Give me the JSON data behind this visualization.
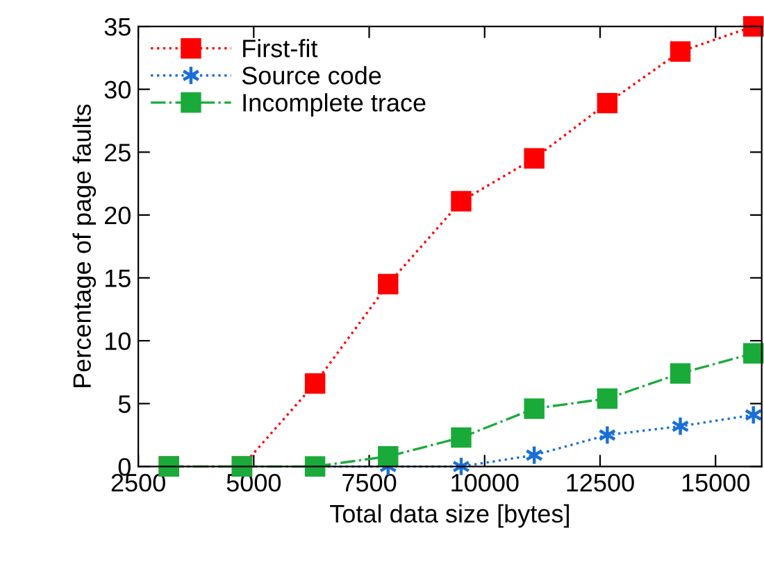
{
  "chart_data": {
    "type": "line",
    "xlabel": "Total data size [bytes]",
    "ylabel": "Percentage of page faults",
    "x": [
      3164,
      4746,
      6328,
      7910,
      9492,
      11074,
      12656,
      14238,
      15820
    ],
    "series": [
      {
        "name": "First-fit",
        "color": "#ff0000",
        "marker": "square",
        "line_style": "dotted",
        "values": [
          0,
          0,
          6.6,
          14.5,
          21.1,
          24.5,
          28.9,
          33.0,
          35.0
        ]
      },
      {
        "name": "Source code",
        "color": "#1a6fd6",
        "marker": "cross",
        "line_style": "dotted",
        "values": [
          null,
          null,
          0,
          0,
          0,
          0.9,
          2.5,
          3.2,
          4.1
        ]
      },
      {
        "name": "Incomplete trace",
        "color": "#1aaa3a",
        "marker": "square",
        "line_style": "dashdot",
        "values": [
          0,
          0,
          0,
          0.8,
          2.3,
          4.6,
          5.4,
          7.4,
          9.0
        ]
      }
    ],
    "xlim": [
      2500,
      16000
    ],
    "xticks": [
      2500,
      5000,
      7500,
      10000,
      12500,
      15000
    ],
    "ylim": [
      0,
      35
    ],
    "yticks": [
      0,
      5,
      10,
      15,
      20,
      25,
      30,
      35
    ],
    "grid": false,
    "legend": "top left"
  }
}
